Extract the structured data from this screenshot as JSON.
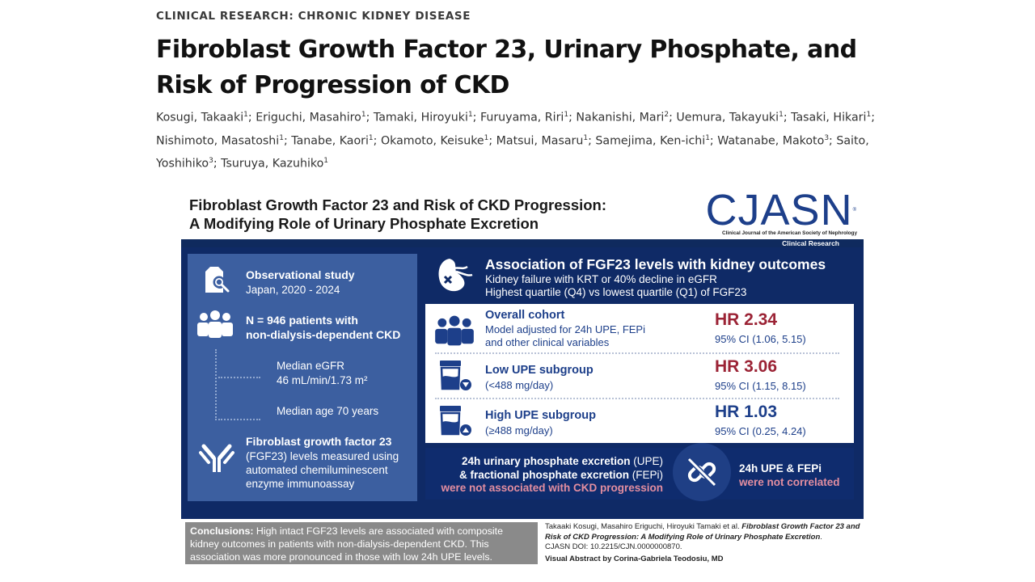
{
  "header": {
    "kicker": "CLINICAL RESEARCH: CHRONIC KIDNEY DISEASE",
    "title": "Fibroblast Growth Factor 23, Urinary Phosphate, and Risk of Progression of CKD",
    "authors": [
      {
        "name": "Kosugi, Takaaki",
        "aff": "1"
      },
      {
        "name": "Eriguchi, Masahiro",
        "aff": "1"
      },
      {
        "name": "Tamaki, Hiroyuki",
        "aff": "1"
      },
      {
        "name": "Furuyama, Riri",
        "aff": "1"
      },
      {
        "name": "Nakanishi, Mari",
        "aff": "2"
      },
      {
        "name": "Uemura, Takayuki",
        "aff": "1"
      },
      {
        "name": "Tasaki, Hikari",
        "aff": "1"
      },
      {
        "name": "Nishimoto, Masatoshi",
        "aff": "1"
      },
      {
        "name": "Tanabe, Kaori",
        "aff": "1"
      },
      {
        "name": "Okamoto, Keisuke",
        "aff": "1"
      },
      {
        "name": "Matsui, Masaru",
        "aff": "1"
      },
      {
        "name": "Samejima, Ken-ichi",
        "aff": "1"
      },
      {
        "name": "Watanabe, Makoto",
        "aff": "3"
      },
      {
        "name": "Saito, Yoshihiko",
        "aff": "3"
      },
      {
        "name": "Tsuruya, Kazuhiko",
        "aff": "1"
      }
    ]
  },
  "visual_abstract": {
    "title_line1": "Fibroblast Growth Factor 23 and Risk of CKD Progression:",
    "title_line2": "A Modifying Role of Urinary Phosphate Excretion",
    "journal_logo": "CJASN",
    "journal_full": "Clinical Journal of the American Society of Nephrology",
    "section": "Clinical Research",
    "colors": {
      "navy": "#0f2a66",
      "panel": "#3c5fa0",
      "hr_red": "#9b2335",
      "hr_blue": "#1d3f8a",
      "pink": "#e38ea0"
    },
    "left": {
      "study_type": "Observational study",
      "study_place": "Japan, 2020 - 2024",
      "n_line1": "N = 946 patients with",
      "n_line2": "non-dialysis-dependent CKD",
      "egfr_label": "Median eGFR",
      "egfr_value": "46 mL/min/1.73 m²",
      "age": "Median age 70 years",
      "fgf_bold": "Fibroblast growth factor 23",
      "fgf_line1": "(FGF23) levels measured using",
      "fgf_line2": "automated chemiluminescent",
      "fgf_line3": "enzyme immunoassay"
    },
    "association": {
      "heading": "Association of FGF23 levels with kidney outcomes",
      "line1": "Kidney failure with KRT or 40% decline in eGFR",
      "line2": "Highest quartile (Q4) vs lowest quartile (Q1) of FGF23"
    },
    "results": [
      {
        "name": "Overall cohort",
        "desc1": "Model adjusted for 24h UPE, FEPi",
        "desc2": "and other clinical variables",
        "hr": "HR 2.34",
        "ci": "95% CI (1.06, 5.15)",
        "color": "#9b2335"
      },
      {
        "name": "Low UPE subgroup",
        "desc1": "(<488 mg/day)",
        "desc2": "",
        "hr": "HR 3.06",
        "ci": "95% CI (1.15, 8.15)",
        "color": "#9b2335"
      },
      {
        "name": "High UPE subgroup",
        "desc1": "(≥488 mg/day)",
        "desc2": "",
        "hr": "HR 1.03",
        "ci": "95% CI (0.25, 4.24)",
        "color": "#1d3f8a"
      }
    ],
    "bottom": {
      "upe_bold": "24h urinary phosphate excretion",
      "upe_abbr": " (UPE)",
      "fepi_bold": "& fractional phosphate excretion",
      "fepi_abbr": " (FEPi)",
      "not_assoc": "were not associated with CKD progression",
      "corr_title": "24h UPE & FEPi",
      "not_corr": "were not correlated"
    },
    "conclusion_label": "Conclusions:",
    "conclusion_text": " High intact FGF23 levels are associated with composite kidney outcomes in patients with non-dialysis-dependent CKD. This association was more pronounced in those with low 24h UPE levels.",
    "citation_authors": "Takaaki Kosugi, Masahiro Eriguchi, Hiroyuki Tamaki et al. ",
    "citation_title": "Fibroblast Growth Factor 23 and Risk of CKD Progression: A Modifying Role of Urinary Phosphate Excretion",
    "citation_doi": "CJASN DOI: 10.2215/CJN.0000000870.",
    "visual_by": "Visual Abstract by Corina-Gabriela Teodosiu, MD"
  }
}
